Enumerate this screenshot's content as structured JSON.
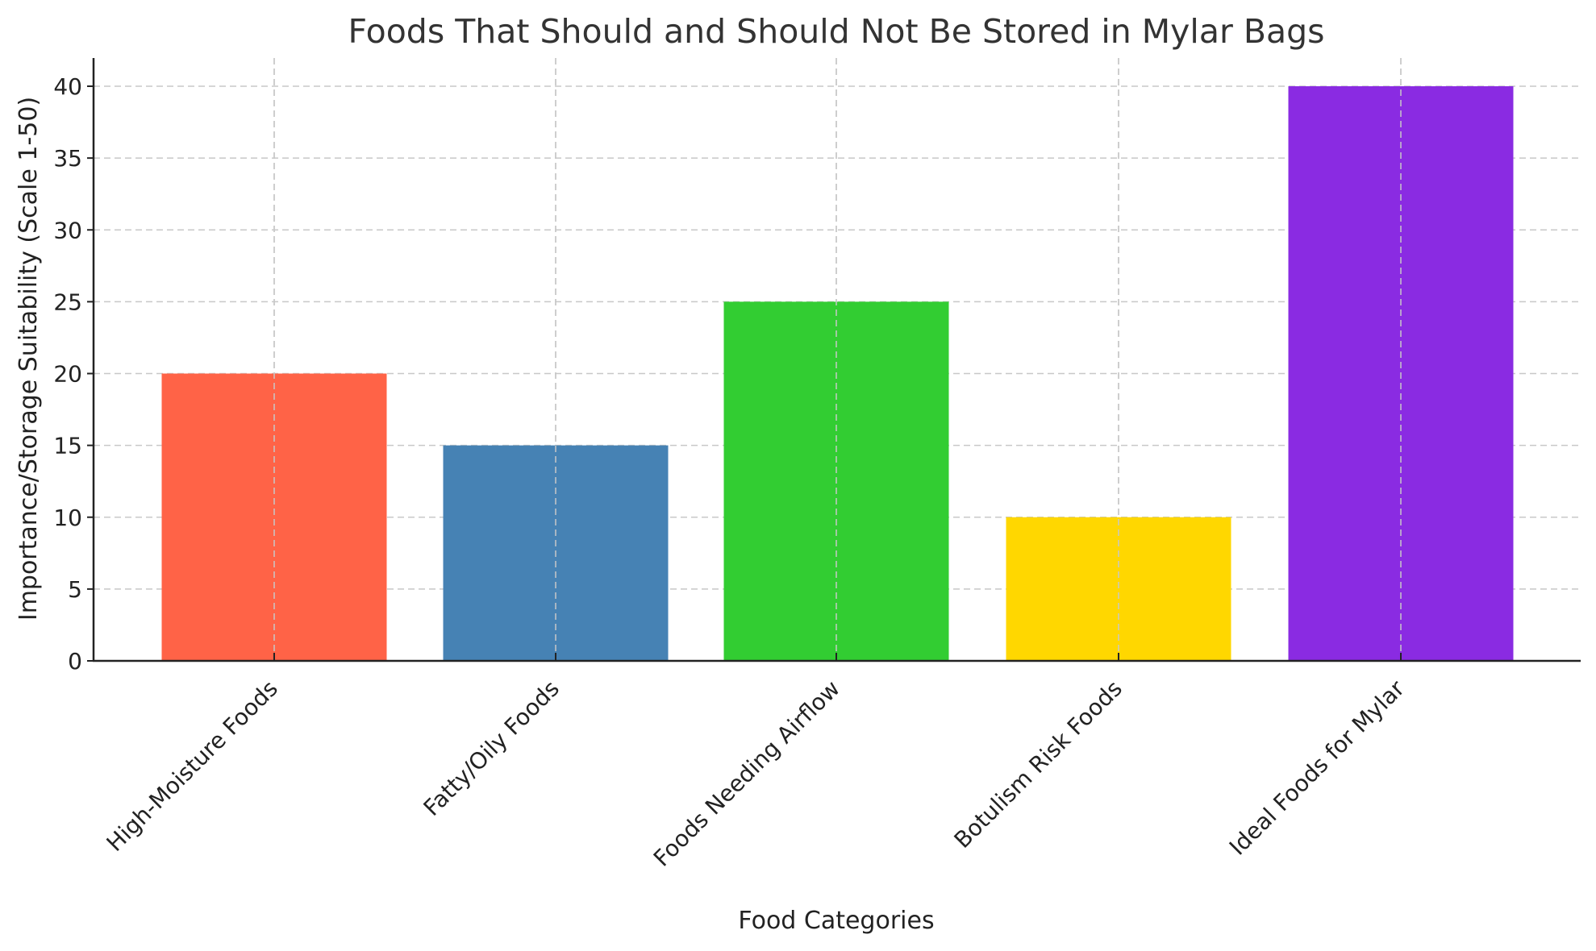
{
  "chart_data": {
    "type": "bar",
    "title": "Foods That Should and Should Not Be Stored in Mylar Bags",
    "xlabel": "Food Categories",
    "ylabel": "Importance/Storage Suitability (Scale 1-50)",
    "categories": [
      "High-Moisture Foods",
      "Fatty/Oily Foods",
      "Foods Needing Airflow",
      "Botulism Risk Foods",
      "Ideal Foods for Mylar"
    ],
    "values": [
      20,
      15,
      25,
      10,
      40
    ],
    "colors": [
      "#ff6347",
      "#4682b4",
      "#32cd32",
      "#ffd700",
      "#8a2be2"
    ],
    "yticks": [
      0,
      5,
      10,
      15,
      20,
      25,
      30,
      35,
      40
    ],
    "ylim": [
      0,
      42
    ],
    "grid": true,
    "legend": null
  }
}
